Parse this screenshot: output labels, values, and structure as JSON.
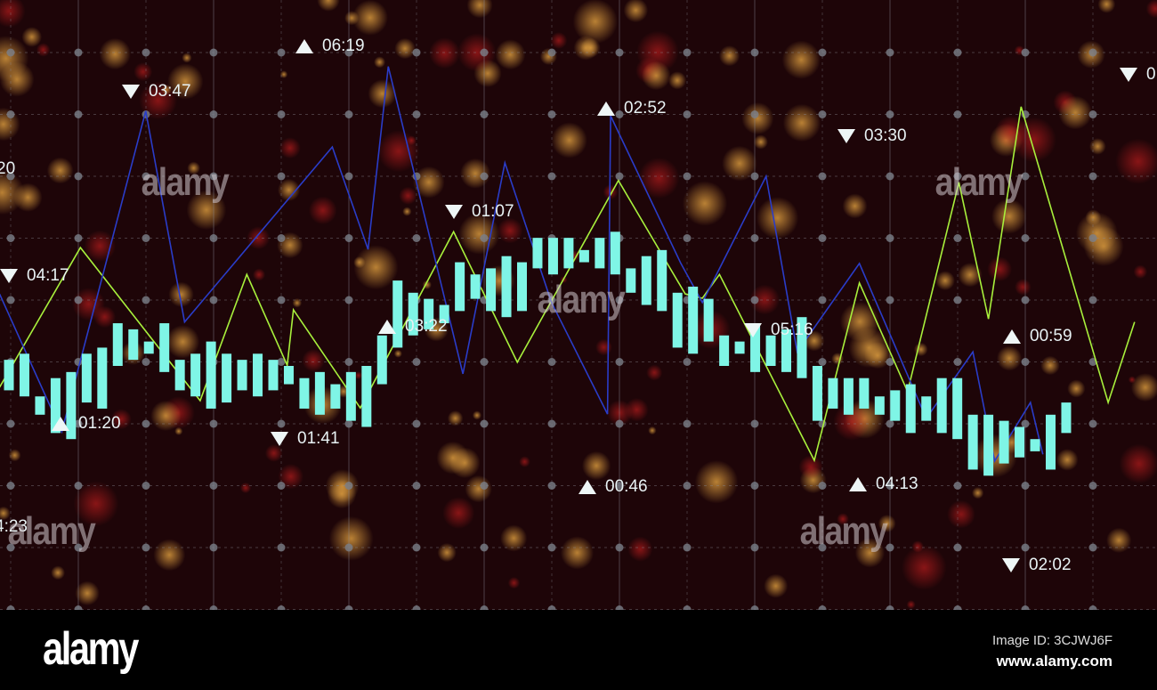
{
  "colors": {
    "background": "#1e0508",
    "bars": "#7ff5e6",
    "green_line": "#a8f03c",
    "blue_line": "#2a3cc8",
    "grid": "#8a8a94",
    "marker": "#eef6f6"
  },
  "chart_data": {
    "type": "bar",
    "title": "",
    "xlabel": "",
    "ylabel": "",
    "grid": true,
    "ylim": [
      0,
      100
    ],
    "bars": [
      [
        36,
        41
      ],
      [
        35,
        42
      ],
      [
        32,
        35
      ],
      [
        29,
        38
      ],
      [
        28,
        39
      ],
      [
        34,
        42
      ],
      [
        33,
        43
      ],
      [
        40,
        47
      ],
      [
        41,
        46
      ],
      [
        42,
        44
      ],
      [
        39,
        47
      ],
      [
        36,
        41
      ],
      [
        35,
        42
      ],
      [
        33,
        44
      ],
      [
        34,
        42
      ],
      [
        36,
        41
      ],
      [
        35,
        42
      ],
      [
        36,
        41
      ],
      [
        37,
        40
      ],
      [
        33,
        38
      ],
      [
        32,
        39
      ],
      [
        33,
        37
      ],
      [
        31,
        39
      ],
      [
        30,
        40
      ],
      [
        37,
        45
      ],
      [
        43,
        54
      ],
      [
        45,
        52
      ],
      [
        46,
        51
      ],
      [
        47,
        50
      ],
      [
        49,
        57
      ],
      [
        51,
        55
      ],
      [
        49,
        56
      ],
      [
        48,
        58
      ],
      [
        49,
        57
      ],
      [
        56,
        61
      ],
      [
        55,
        61
      ],
      [
        56,
        61
      ],
      [
        57,
        59
      ],
      [
        56,
        61
      ],
      [
        55,
        62
      ],
      [
        52,
        56
      ],
      [
        50,
        58
      ],
      [
        49,
        59
      ],
      [
        43,
        52
      ],
      [
        42,
        53
      ],
      [
        44,
        51
      ],
      [
        40,
        45
      ],
      [
        42,
        44
      ],
      [
        39,
        47
      ],
      [
        40,
        45
      ],
      [
        39,
        46
      ],
      [
        38,
        48
      ],
      [
        31,
        40
      ],
      [
        33,
        38
      ],
      [
        32,
        38
      ],
      [
        33,
        38
      ],
      [
        32,
        35
      ],
      [
        31,
        36
      ],
      [
        29,
        37
      ],
      [
        31,
        35
      ],
      [
        29,
        38
      ],
      [
        28,
        38
      ],
      [
        23,
        32
      ],
      [
        22,
        32
      ],
      [
        24,
        31
      ],
      [
        25,
        30
      ],
      [
        26,
        28
      ],
      [
        23,
        32
      ],
      [
        29,
        34
      ]
    ],
    "lines": [
      {
        "color": "#a8f03c",
        "points": [
          [
            -0.6,
            36.5
          ],
          [
            4.6,
            59.4
          ],
          [
            12.3,
            34.3
          ],
          [
            15.3,
            55.0
          ],
          [
            17.9,
            40.1
          ],
          [
            18.3,
            49.2
          ],
          [
            22.6,
            33.1
          ],
          [
            28.6,
            62.0
          ],
          [
            32.7,
            40.6
          ],
          [
            39.2,
            70.4
          ],
          [
            43.5,
            51.8
          ],
          [
            44.6,
            51.1
          ],
          [
            45.7,
            55.0
          ],
          [
            51.8,
            24.5
          ],
          [
            54.7,
            53.6
          ],
          [
            57.8,
            35.8
          ],
          [
            61.1,
            70.1
          ],
          [
            63.0,
            47.7
          ],
          [
            65.1,
            82.5
          ],
          [
            70.7,
            34.0
          ],
          [
            72.4,
            47.2
          ]
        ]
      },
      {
        "color": "#2a3cc8",
        "points": [
          [
            -0.6,
            51.8
          ],
          [
            3.4,
            29.2
          ],
          [
            8.8,
            81.8
          ],
          [
            11.3,
            47.2
          ],
          [
            20.8,
            75.9
          ],
          [
            23.1,
            59.1
          ],
          [
            24.4,
            89.1
          ],
          [
            29.2,
            38.7
          ],
          [
            31.9,
            73.3
          ],
          [
            34.9,
            50.4
          ],
          [
            38.5,
            32.1
          ],
          [
            38.7,
            81.0
          ],
          [
            43.2,
            56.9
          ],
          [
            44.6,
            50.4
          ],
          [
            48.7,
            71.1
          ],
          [
            50.7,
            42.3
          ],
          [
            54.7,
            56.8
          ],
          [
            59.0,
            31.4
          ],
          [
            62.0,
            42.3
          ],
          [
            63.4,
            24.4
          ],
          [
            65.7,
            34.0
          ],
          [
            66.5,
            25.5
          ]
        ]
      }
    ],
    "annotations": [
      {
        "label": "06:19",
        "dir": "up"
      },
      {
        "label": "03:47",
        "dir": "down"
      },
      {
        "label": "02:52",
        "dir": "up"
      },
      {
        "label": "03:30",
        "dir": "down"
      },
      {
        "label": "20",
        "dir": "none"
      },
      {
        "label": "0",
        "dir": "down"
      },
      {
        "label": "01:07",
        "dir": "down"
      },
      {
        "label": "04:17",
        "dir": "down"
      },
      {
        "label": "03:22",
        "dir": "up"
      },
      {
        "label": "05:16",
        "dir": "down"
      },
      {
        "label": "00:59",
        "dir": "up"
      },
      {
        "label": "01:20",
        "dir": "up"
      },
      {
        "label": "01:41",
        "dir": "down"
      },
      {
        "label": "00:46",
        "dir": "up"
      },
      {
        "label": "04:13",
        "dir": "up"
      },
      {
        "label": "02:02",
        "dir": "down"
      },
      {
        "label": "4:23",
        "dir": "none"
      }
    ]
  },
  "watermark": {
    "text": "alamy",
    "letter": "a"
  },
  "footer": {
    "logo": "alamy",
    "image_id": "Image ID: 3CJWJ6F",
    "site": "www.alamy.com"
  }
}
